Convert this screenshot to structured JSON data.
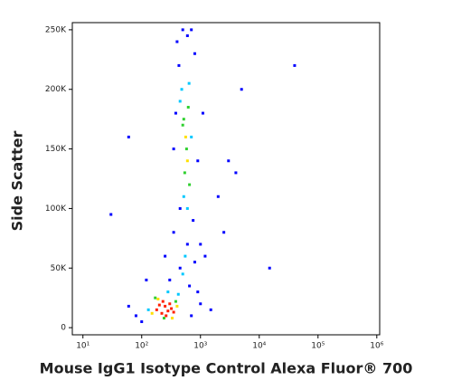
{
  "chart_data": {
    "type": "scatter",
    "x_label": "Mouse IgG1 Isotype Control Alexa Fluor® 700",
    "y_label": "Side Scatter",
    "x_scale": "log",
    "xlim": [
      6.6,
      1120000
    ],
    "ylim": [
      -6000,
      256000
    ],
    "xticks": [
      {
        "value": 10,
        "label": "10¹"
      },
      {
        "value": 100,
        "label": "10²"
      },
      {
        "value": 1000,
        "label": "10³"
      },
      {
        "value": 10000,
        "label": "10⁴"
      },
      {
        "value": 100000,
        "label": "10⁵"
      },
      {
        "value": 1000000,
        "label": "10⁶"
      }
    ],
    "yticks": [
      0,
      {
        "value": 50000,
        "label": "50K"
      },
      {
        "value": 100000,
        "label": "100K"
      },
      {
        "value": 150000,
        "label": "150K"
      },
      {
        "value": 200000,
        "label": "200K"
      },
      {
        "value": 250000,
        "label": "250K"
      }
    ],
    "grid": false,
    "series": [
      {
        "color": "#0000ff",
        "x": [
          400,
          700,
          430,
          800,
          380,
          900,
          450,
          750,
          350,
          600,
          800,
          450,
          300,
          650,
          1000,
          1500,
          80,
          60,
          100,
          1200,
          5000,
          3000,
          2000,
          30,
          60,
          40000,
          15000,
          500,
          600,
          350,
          1100,
          250,
          1000,
          2500,
          4000,
          700,
          120,
          900
        ],
        "y": [
          240000,
          250000,
          220000,
          230000,
          180000,
          140000,
          100000,
          90000,
          80000,
          70000,
          55000,
          50000,
          40000,
          35000,
          20000,
          15000,
          10000,
          18000,
          5000,
          60000,
          200000,
          140000,
          110000,
          95000,
          160000,
          220000,
          50000,
          250000,
          245000,
          150000,
          180000,
          60000,
          70000,
          80000,
          130000,
          10000,
          40000,
          30000
        ]
      },
      {
        "color": "#00c8ff",
        "x": [
          480,
          640,
          520,
          600,
          450,
          700,
          550,
          130,
          420,
          280,
          500
        ],
        "y": [
          200000,
          205000,
          110000,
          100000,
          190000,
          160000,
          60000,
          15000,
          28000,
          30000,
          45000
        ]
      },
      {
        "color": "#30d030",
        "x": [
          500,
          620,
          540,
          580,
          650,
          520,
          170,
          380,
          240
        ],
        "y": [
          170000,
          185000,
          130000,
          150000,
          120000,
          175000,
          25000,
          22000,
          8000
        ]
      },
      {
        "color": "#ffe000",
        "x": [
          150,
          400,
          190,
          330,
          560,
          600
        ],
        "y": [
          12000,
          18000,
          24000,
          8000,
          160000,
          140000
        ]
      },
      {
        "color": "#ff2000",
        "x": [
          180,
          220,
          250,
          280,
          300,
          320,
          260,
          230,
          350,
          200
        ],
        "y": [
          15000,
          12000,
          18000,
          14000,
          20000,
          16000,
          10000,
          22000,
          13000,
          19000
        ]
      }
    ]
  }
}
